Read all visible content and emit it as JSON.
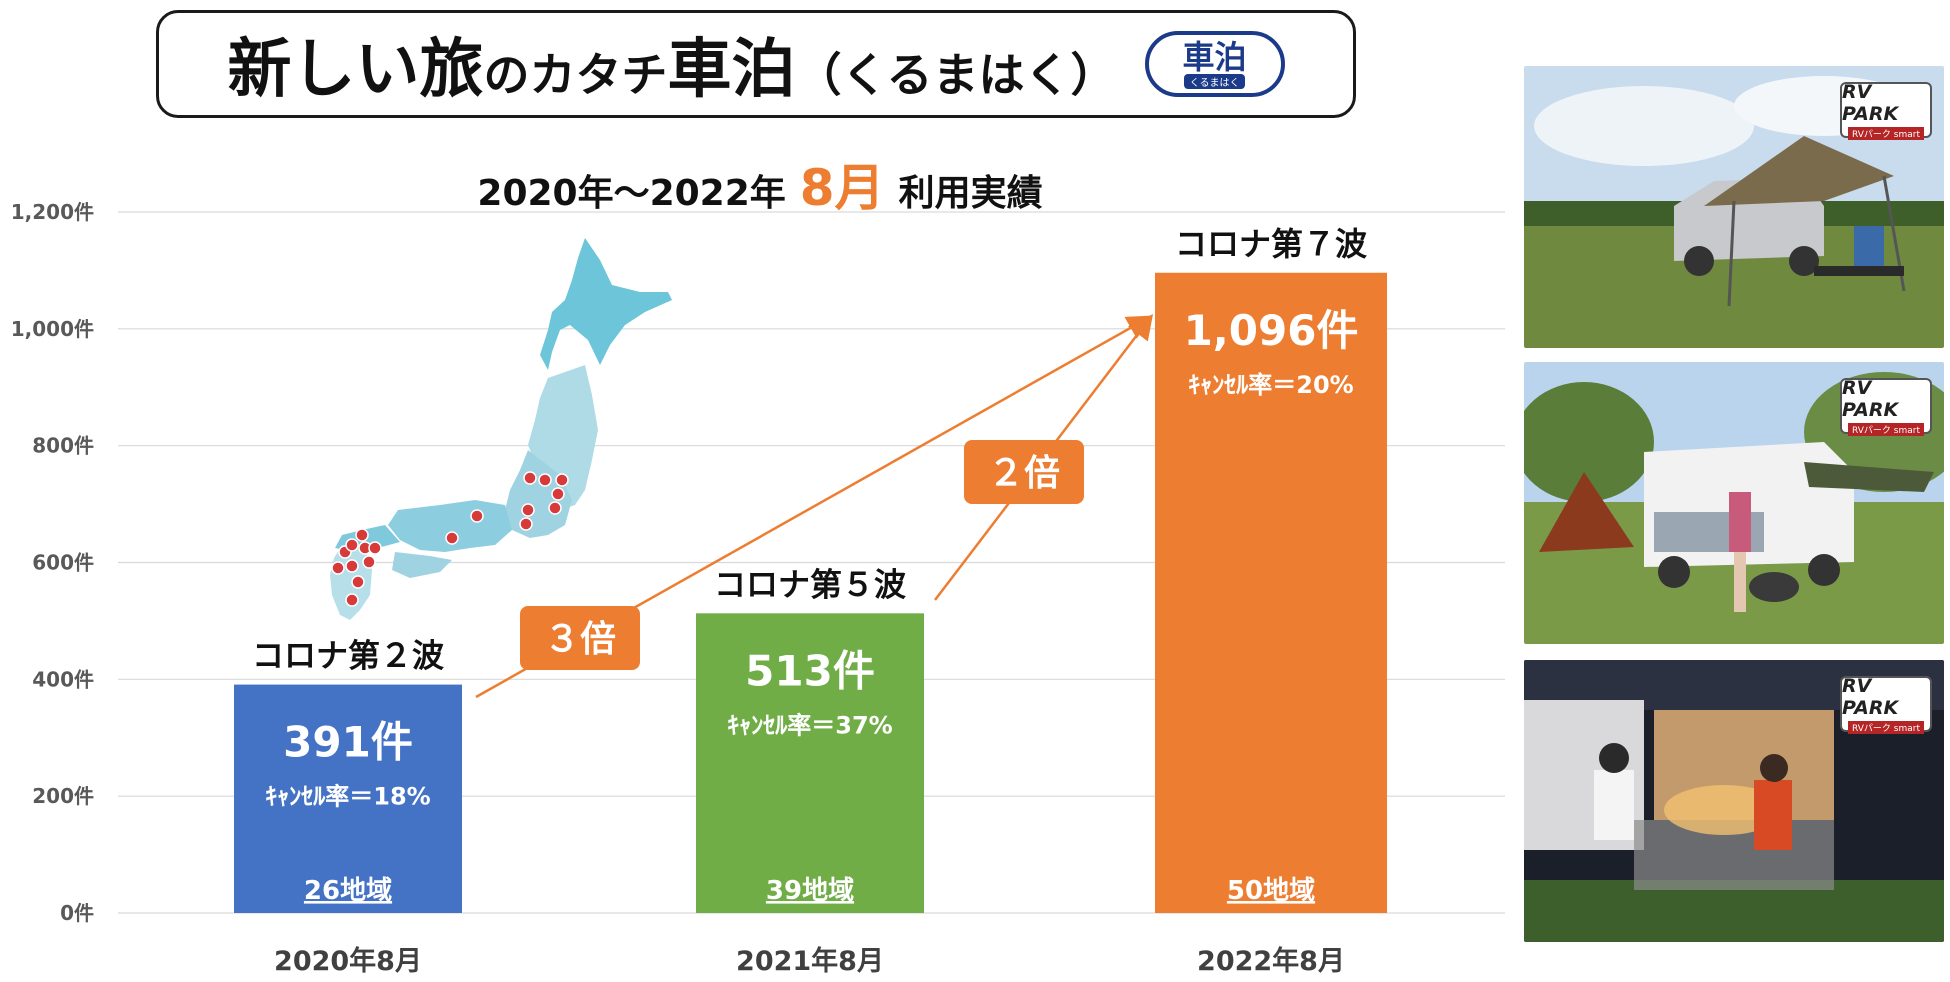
{
  "header": {
    "title_parts": [
      "新しい旅",
      "のカタチ",
      "車泊",
      "（くるまはく）"
    ],
    "logo_text": "車泊",
    "logo_sub": "くるまはく"
  },
  "subtitle": {
    "left": "2020年～2022年",
    "accent": "8月",
    "right": "利用実績"
  },
  "chart_data": {
    "type": "bar",
    "categories": [
      "2020年8月",
      "2021年8月",
      "2022年8月"
    ],
    "values": [
      391,
      513,
      1096
    ],
    "value_labels": [
      "391件",
      "513件",
      "1,096件"
    ],
    "cancel_rates": [
      "ｷｬﾝｾﾙ率＝18%",
      "ｷｬﾝｾﾙ率＝37%",
      "ｷｬﾝｾﾙ率＝20%"
    ],
    "regions": [
      "26地域",
      "39地域",
      "50地域"
    ],
    "wave_labels": [
      "コロナ第２波",
      "コロナ第５波",
      "コロナ第７波"
    ],
    "colors": [
      "#4472c4",
      "#70ad47",
      "#ed7d31"
    ],
    "ylim": [
      0,
      1200
    ],
    "yticks": [
      0,
      200,
      400,
      600,
      800,
      1000,
      1200
    ],
    "ytick_labels": [
      "0件",
      "200件",
      "400件",
      "600件",
      "800件",
      "1,000件",
      "1,200件"
    ],
    "grid": true,
    "multipliers": [
      {
        "label": "３倍",
        "from": 0,
        "to": 2
      },
      {
        "label": "２倍",
        "from": 1,
        "to": 2
      }
    ],
    "accent_color": "#ed7d31"
  },
  "photos": [
    {
      "logo_main": "RV PARK",
      "logo_sub": "RVパーク smart"
    },
    {
      "logo_main": "RV PARK",
      "logo_sub": "RVパーク smart"
    },
    {
      "logo_main": "RV PARK",
      "logo_sub": "RVパーク smart"
    }
  ]
}
